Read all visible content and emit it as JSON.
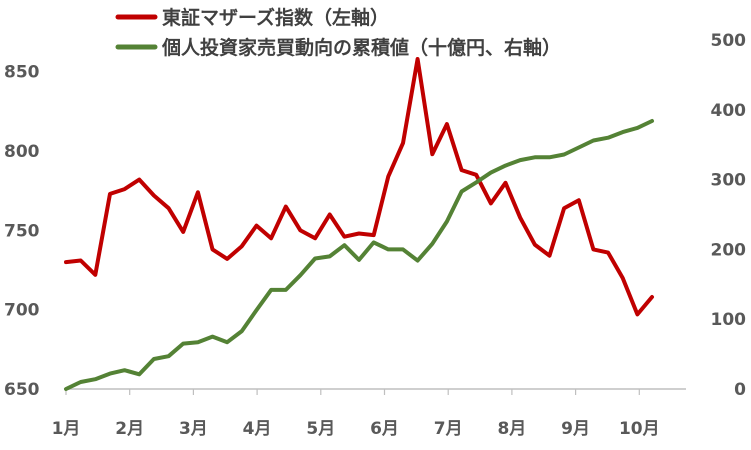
{
  "chart_data": {
    "type": "line",
    "x_months": [
      "1月",
      "2月",
      "3月",
      "4月",
      "5月",
      "6月",
      "7月",
      "8月",
      "9月",
      "10月"
    ],
    "left_axis": {
      "ylim": [
        650,
        870
      ],
      "ticks": [
        650,
        700,
        750,
        800,
        850
      ]
    },
    "right_axis": {
      "ylim": [
        0,
        500
      ],
      "ticks": [
        0,
        100,
        200,
        300,
        400,
        500
      ]
    },
    "legend": {
      "placement": "top"
    },
    "series": [
      {
        "name": "東証マザーズ指数（左軸）",
        "axis": "left",
        "color": "#C00000",
        "x": [
          1.0,
          1.23,
          1.46,
          1.69,
          1.92,
          2.15,
          2.38,
          2.61,
          2.84,
          3.07,
          3.3,
          3.53,
          3.76,
          3.99,
          4.22,
          4.45,
          4.68,
          4.91,
          5.14,
          5.37,
          5.6,
          5.83,
          6.06,
          6.29,
          6.52,
          6.75,
          6.98,
          7.21,
          7.44,
          7.67,
          7.9,
          8.13,
          8.36,
          8.59,
          8.82,
          9.05,
          9.28,
          9.51,
          9.74,
          9.97,
          10.2
        ],
        "values": [
          730,
          731,
          722,
          773,
          776,
          782,
          772,
          764,
          749,
          774,
          738,
          732,
          740,
          753,
          745,
          765,
          750,
          745,
          760,
          746,
          748,
          747,
          784,
          805,
          858,
          798,
          817,
          788,
          785,
          767,
          780,
          758,
          741,
          734,
          764,
          769,
          738,
          736,
          720,
          697,
          708
        ]
      },
      {
        "name": "個人投資家売買動向の累積値（十億円、右軸）",
        "axis": "right",
        "color": "#548235",
        "x": [
          1.0,
          1.23,
          1.46,
          1.69,
          1.92,
          2.15,
          2.38,
          2.61,
          2.84,
          3.07,
          3.3,
          3.53,
          3.76,
          3.99,
          4.22,
          4.45,
          4.68,
          4.91,
          5.14,
          5.37,
          5.6,
          5.83,
          6.06,
          6.29,
          6.52,
          6.75,
          6.98,
          7.21,
          7.44,
          7.67,
          7.9,
          8.13,
          8.36,
          8.59,
          8.82,
          9.05,
          9.28,
          9.51,
          9.74,
          9.97,
          10.2
        ],
        "values": [
          0,
          10,
          14,
          22,
          27,
          21,
          43,
          47,
          65,
          67,
          75,
          67,
          83,
          113,
          142,
          142,
          163,
          187,
          190,
          206,
          185,
          210,
          200,
          200,
          184,
          208,
          240,
          283,
          296,
          310,
          320,
          328,
          332,
          332,
          336,
          346,
          356,
          360,
          368,
          374,
          384
        ]
      }
    ]
  }
}
